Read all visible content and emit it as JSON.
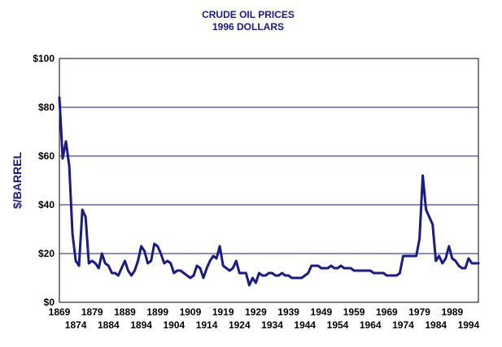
{
  "chart_data": {
    "type": "line",
    "title": "CRUDE OIL PRICES",
    "subtitle": "1996 DOLLARS",
    "xlabel": "",
    "ylabel": "$/BARREL",
    "ylim": [
      0,
      100
    ],
    "xlim": [
      1869,
      1997
    ],
    "grid": true,
    "legend": "none",
    "colors": {
      "line": "#1a1a8c",
      "grid": "#1a1a8c",
      "title": "#1a1a8c",
      "plot_border": "#000000"
    },
    "y_ticks": [
      {
        "value": 0,
        "label": "$0"
      },
      {
        "value": 20,
        "label": "$20"
      },
      {
        "value": 40,
        "label": "$40"
      },
      {
        "value": 60,
        "label": "$60"
      },
      {
        "value": 80,
        "label": "$80"
      },
      {
        "value": 100,
        "label": "$100"
      }
    ],
    "x_ticks_top": [
      {
        "value": 1869,
        "label": "1869"
      },
      {
        "value": 1879,
        "label": "1879"
      },
      {
        "value": 1889,
        "label": "1889"
      },
      {
        "value": 1899,
        "label": "1899"
      },
      {
        "value": 1909,
        "label": "1909"
      },
      {
        "value": 1919,
        "label": "1919"
      },
      {
        "value": 1929,
        "label": "1929"
      },
      {
        "value": 1939,
        "label": "1939"
      },
      {
        "value": 1949,
        "label": "1949"
      },
      {
        "value": 1959,
        "label": "1959"
      },
      {
        "value": 1969,
        "label": "1969"
      },
      {
        "value": 1979,
        "label": "1979"
      },
      {
        "value": 1989,
        "label": "1989"
      }
    ],
    "x_ticks_bottom": [
      {
        "value": 1874,
        "label": "1874"
      },
      {
        "value": 1884,
        "label": "1884"
      },
      {
        "value": 1894,
        "label": "1894"
      },
      {
        "value": 1904,
        "label": "1904"
      },
      {
        "value": 1914,
        "label": "1914"
      },
      {
        "value": 1924,
        "label": "1924"
      },
      {
        "value": 1934,
        "label": "1934"
      },
      {
        "value": 1944,
        "label": "1944"
      },
      {
        "value": 1954,
        "label": "1954"
      },
      {
        "value": 1964,
        "label": "1964"
      },
      {
        "value": 1974,
        "label": "1974"
      },
      {
        "value": 1984,
        "label": "1984"
      },
      {
        "value": 1994,
        "label": "1994"
      }
    ],
    "series": [
      {
        "x": [
          1869,
          1870,
          1871,
          1872,
          1873,
          1874,
          1875,
          1876,
          1877,
          1878,
          1879,
          1880,
          1881,
          1882,
          1883,
          1884,
          1885,
          1886,
          1887,
          1888,
          1889,
          1890,
          1891,
          1892,
          1893,
          1894,
          1895,
          1896,
          1897,
          1898,
          1899,
          1900,
          1901,
          1902,
          1903,
          1904,
          1905,
          1906,
          1907,
          1908,
          1909,
          1910,
          1911,
          1912,
          1913,
          1914,
          1915,
          1916,
          1917,
          1918,
          1919,
          1920,
          1921,
          1922,
          1923,
          1924,
          1925,
          1926,
          1927,
          1928,
          1929,
          1930,
          1931,
          1932,
          1933,
          1934,
          1935,
          1936,
          1937,
          1938,
          1939,
          1940,
          1941,
          1942,
          1943,
          1944,
          1945,
          1946,
          1947,
          1948,
          1949,
          1950,
          1951,
          1952,
          1953,
          1954,
          1955,
          1956,
          1957,
          1958,
          1959,
          1960,
          1961,
          1962,
          1963,
          1964,
          1965,
          1966,
          1967,
          1968,
          1969,
          1970,
          1971,
          1972,
          1973,
          1974,
          1975,
          1976,
          1977,
          1978,
          1979,
          1980,
          1981,
          1982,
          1983,
          1984,
          1985,
          1986,
          1987,
          1988,
          1989,
          1990,
          1991,
          1992,
          1993,
          1994,
          1995,
          1996,
          1997
        ],
        "values": [
          84,
          59,
          66,
          56,
          28,
          17,
          15,
          38,
          35,
          16,
          17,
          16,
          14,
          20,
          16,
          15,
          12,
          12,
          11,
          14,
          17,
          13,
          11,
          13,
          17,
          23,
          21,
          16,
          17,
          24,
          23,
          20,
          16,
          17,
          16,
          12,
          13,
          13,
          12,
          11,
          10,
          11,
          15,
          14,
          10,
          14,
          17,
          19,
          18,
          23,
          15,
          14,
          13,
          14,
          17,
          12,
          12,
          12,
          7,
          10,
          8,
          12,
          11,
          11,
          12,
          12,
          11,
          11,
          12,
          11,
          11,
          10,
          10,
          10,
          10,
          11,
          12,
          15,
          15,
          15,
          14,
          14,
          14,
          15,
          14,
          14,
          15,
          14,
          14,
          14,
          13,
          13,
          13,
          13,
          13,
          13,
          12,
          12,
          12,
          12,
          11,
          11,
          11,
          11,
          12,
          19,
          19,
          19,
          19,
          19,
          26,
          52,
          38,
          35,
          32,
          17,
          19,
          16,
          18,
          23,
          18,
          17,
          15,
          14,
          14,
          18,
          16,
          16,
          16
        ]
      }
    ]
  }
}
